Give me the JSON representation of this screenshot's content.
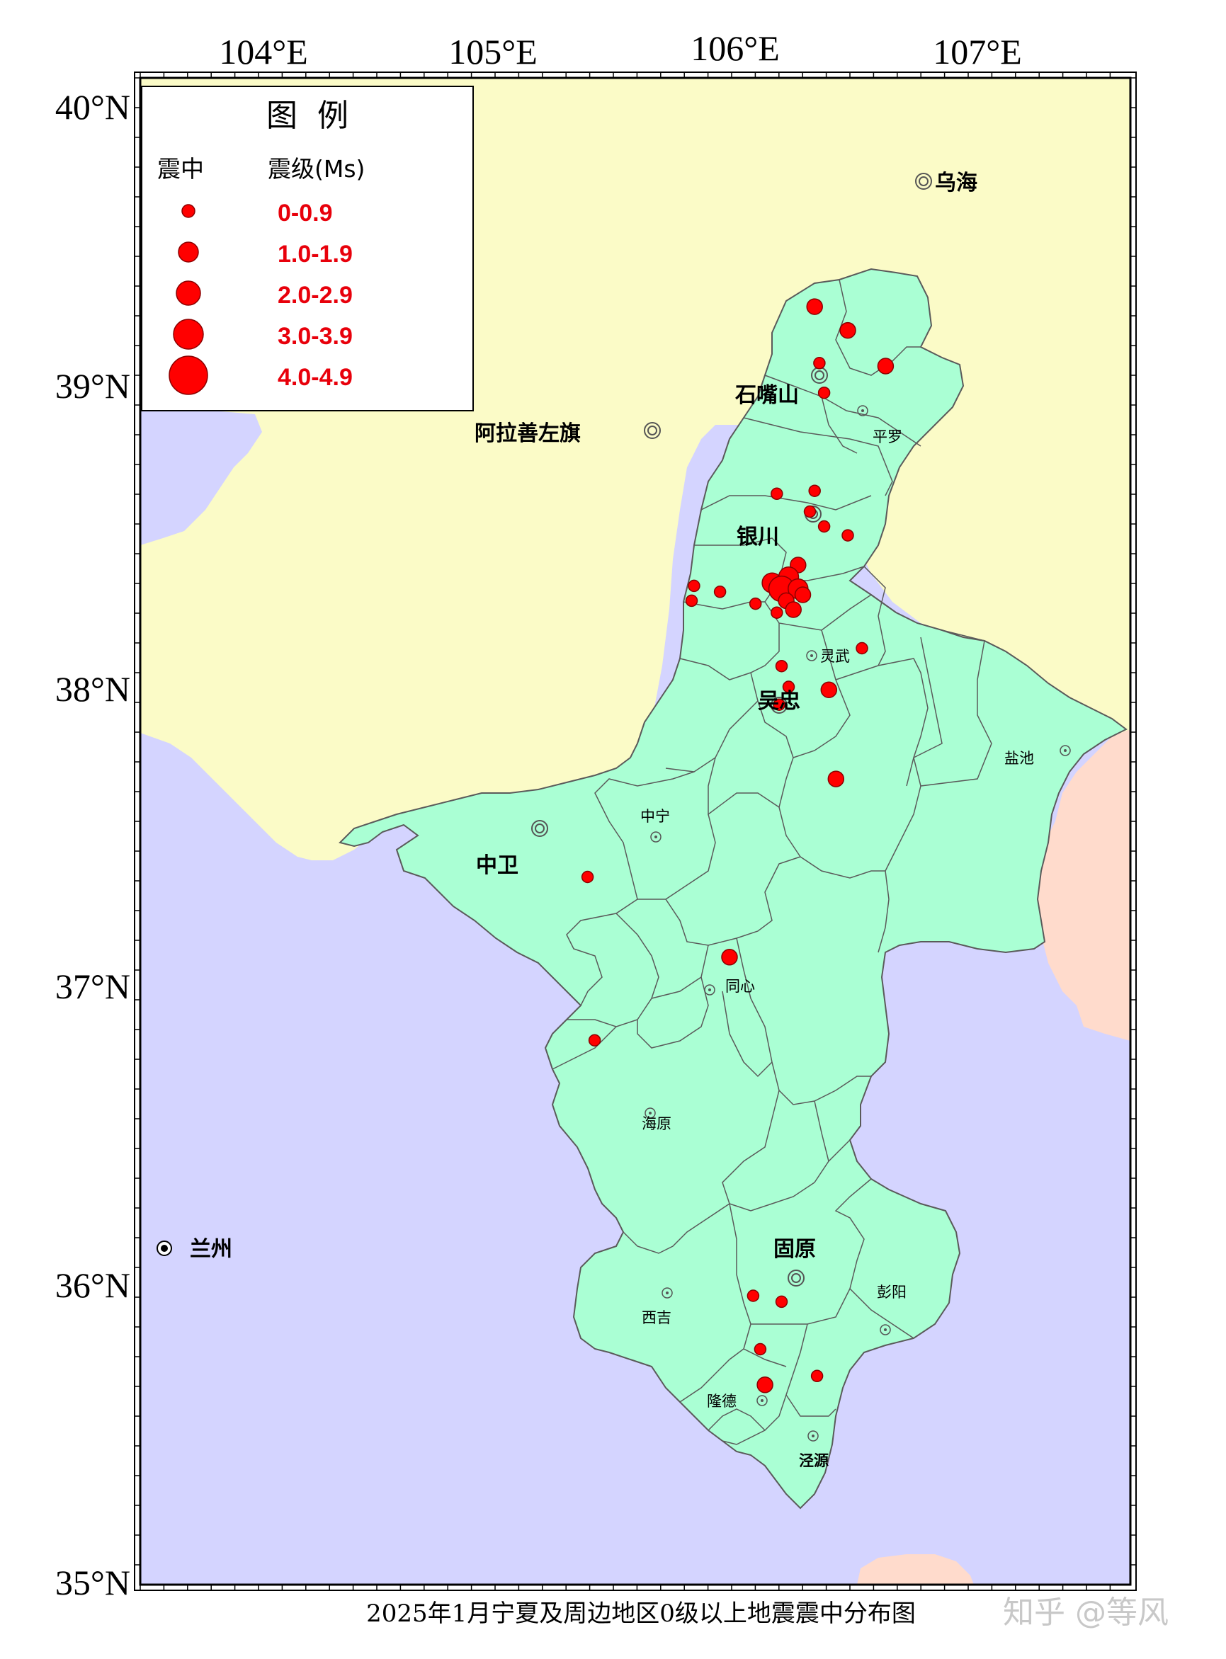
{
  "map": {
    "x_ticks": [
      "104°E",
      "105°E",
      "106°E",
      "107°E"
    ],
    "y_ticks": [
      "40°N",
      "39°N",
      "38°N",
      "37°N",
      "36°N",
      "35°N"
    ],
    "colors": {
      "land_north": "#fbfbc7",
      "land_south": "#d4d4ff",
      "ningxia": "#aaffd4",
      "shaanxi": "#ffdbcc",
      "epicenter": "#ff0000",
      "border": "#5a5a5a"
    },
    "cities": [
      {
        "key": "wuhai",
        "name": "乌海",
        "marker": "double-circle"
      },
      {
        "key": "shizuishan",
        "name": "石嘴山",
        "marker": "double-circle"
      },
      {
        "key": "alxa",
        "name": "阿拉善左旗",
        "marker": "double-circle"
      },
      {
        "key": "yinchuan",
        "name": "银川",
        "marker": "double-circle"
      },
      {
        "key": "wuzhong",
        "name": "吴忠",
        "marker": "double-circle"
      },
      {
        "key": "zhongwei",
        "name": "中卫",
        "marker": "double-circle"
      },
      {
        "key": "guyuan",
        "name": "固原",
        "marker": "double-circle"
      },
      {
        "key": "lanzhou",
        "name": "兰州",
        "marker": "dot"
      }
    ],
    "counties": [
      {
        "key": "pingluo",
        "name": "平罗"
      },
      {
        "key": "lingwu",
        "name": "灵武"
      },
      {
        "key": "yanchi",
        "name": "盐池"
      },
      {
        "key": "zhongning",
        "name": "中宁"
      },
      {
        "key": "tongxin",
        "name": "同心"
      },
      {
        "key": "haiyuan",
        "name": "海原"
      },
      {
        "key": "xiji",
        "name": "西吉"
      },
      {
        "key": "pengyang",
        "name": "彭阳"
      },
      {
        "key": "longde",
        "name": "隆德"
      },
      {
        "key": "jingyuan",
        "name": "泾源"
      }
    ],
    "epicenters": [
      {
        "lon": 106.33,
        "lat": 39.33,
        "mag_class": 2
      },
      {
        "lon": 106.47,
        "lat": 39.25,
        "mag_class": 2
      },
      {
        "lon": 106.35,
        "lat": 39.14,
        "mag_class": 1
      },
      {
        "lon": 106.63,
        "lat": 39.13,
        "mag_class": 2
      },
      {
        "lon": 106.37,
        "lat": 39.04,
        "mag_class": 1
      },
      {
        "lon": 106.17,
        "lat": 38.7,
        "mag_class": 1
      },
      {
        "lon": 106.33,
        "lat": 38.71,
        "mag_class": 1
      },
      {
        "lon": 106.31,
        "lat": 38.64,
        "mag_class": 1
      },
      {
        "lon": 106.37,
        "lat": 38.59,
        "mag_class": 1
      },
      {
        "lon": 106.47,
        "lat": 38.56,
        "mag_class": 1
      },
      {
        "lon": 106.26,
        "lat": 38.46,
        "mag_class": 2
      },
      {
        "lon": 106.22,
        "lat": 38.42,
        "mag_class": 3
      },
      {
        "lon": 106.15,
        "lat": 38.4,
        "mag_class": 3
      },
      {
        "lon": 106.19,
        "lat": 38.38,
        "mag_class": 4
      },
      {
        "lon": 106.26,
        "lat": 38.38,
        "mag_class": 3
      },
      {
        "lon": 106.21,
        "lat": 38.34,
        "mag_class": 2
      },
      {
        "lon": 106.28,
        "lat": 38.36,
        "mag_class": 2
      },
      {
        "lon": 106.24,
        "lat": 38.31,
        "mag_class": 2
      },
      {
        "lon": 106.17,
        "lat": 38.3,
        "mag_class": 1
      },
      {
        "lon": 106.08,
        "lat": 38.33,
        "mag_class": 1
      },
      {
        "lon": 105.93,
        "lat": 38.37,
        "mag_class": 1
      },
      {
        "lon": 105.82,
        "lat": 38.39,
        "mag_class": 1
      },
      {
        "lon": 105.81,
        "lat": 38.34,
        "mag_class": 1
      },
      {
        "lon": 106.53,
        "lat": 38.18,
        "mag_class": 1
      },
      {
        "lon": 106.19,
        "lat": 38.12,
        "mag_class": 1
      },
      {
        "lon": 106.22,
        "lat": 38.05,
        "mag_class": 1
      },
      {
        "lon": 106.39,
        "lat": 38.04,
        "mag_class": 2
      },
      {
        "lon": 106.18,
        "lat": 37.99,
        "mag_class": 1
      },
      {
        "lon": 106.42,
        "lat": 37.74,
        "mag_class": 2
      },
      {
        "lon": 105.37,
        "lat": 37.41,
        "mag_class": 1
      },
      {
        "lon": 105.97,
        "lat": 37.14,
        "mag_class": 2
      },
      {
        "lon": 105.4,
        "lat": 36.86,
        "mag_class": 1
      },
      {
        "lon": 106.07,
        "lat": 36.0,
        "mag_class": 1
      },
      {
        "lon": 106.19,
        "lat": 35.98,
        "mag_class": 1
      },
      {
        "lon": 106.1,
        "lat": 35.82,
        "mag_class": 1
      },
      {
        "lon": 106.34,
        "lat": 35.73,
        "mag_class": 1
      },
      {
        "lon": 106.12,
        "lat": 35.7,
        "mag_class": 2
      }
    ]
  },
  "legend": {
    "title": "图  例",
    "col_epicenter": "震中",
    "col_magnitude": "震级(Ms)",
    "items": [
      {
        "range": "0-0.9"
      },
      {
        "range": "1.0-1.9"
      },
      {
        "range": "2.0-2.9"
      },
      {
        "range": "3.0-3.9"
      },
      {
        "range": "4.0-4.9"
      }
    ]
  },
  "caption": "2025年1月宁夏及周边地区0级以上地震震中分布图",
  "watermark": "知乎 @等风"
}
